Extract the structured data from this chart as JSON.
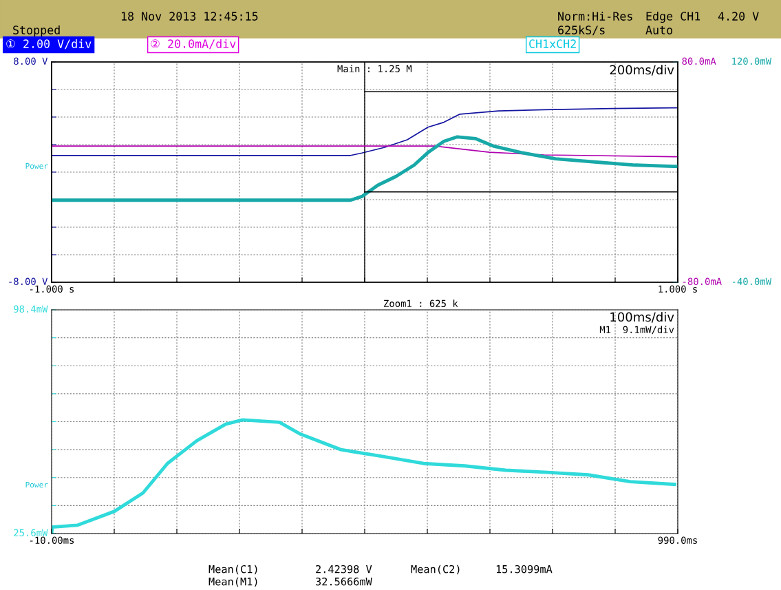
{
  "chart_data": [
    {
      "type": "line",
      "grid": true,
      "xlim": [
        -1,
        1
      ],
      "xticks": [
        {
          "value": -1,
          "label": "-1.000 s"
        },
        {
          "value": -0.8,
          "label": null
        },
        {
          "value": -0.6,
          "label": null
        },
        {
          "value": -0.4,
          "label": null
        },
        {
          "value": -0.2,
          "label": null
        },
        {
          "value": 0,
          "label": null
        },
        {
          "value": 0.2,
          "label": null
        },
        {
          "value": 0.4,
          "label": null
        },
        {
          "value": 0.6,
          "label": null
        },
        {
          "value": 0.8,
          "label": null
        },
        {
          "value": 1,
          "label": "1.000 s"
        }
      ],
      "ylim": [
        -8,
        8
      ],
      "yticks": [
        {
          "value": 8,
          "label": "8.00 V"
        },
        {
          "value": 6,
          "label": null
        },
        {
          "value": 4,
          "label": null
        },
        {
          "value": 2,
          "label": null
        },
        {
          "value": 0,
          "label": null
        },
        {
          "value": -2,
          "label": null
        },
        {
          "value": -4,
          "label": null
        },
        {
          "value": -6,
          "label": null
        },
        {
          "value": -8,
          "label": "-8.00 V"
        }
      ],
      "y2lim": [
        -80,
        80
      ],
      "y2ticks": [
        {
          "value": 80,
          "label": "80.0mA"
        },
        {
          "value": -80,
          "label": "-80.0mA"
        }
      ],
      "y3lim": [
        -40,
        120
      ],
      "y3ticks": [
        {
          "value": 120,
          "label": "120.0mW"
        },
        {
          "value": -40,
          "label": "-40.0mW"
        }
      ],
      "series": [
        {
          "axis": "y",
          "color": "#1414a0",
          "x": [
            -1,
            -0.045,
            -0.009,
            0.064,
            0.136,
            0.202,
            0.253,
            0.304,
            0.427,
            0.573,
            0.791,
            0.985,
            1
          ],
          "values": [
            1.21,
            1.21,
            1.39,
            1.8,
            2.35,
            3.26,
            3.62,
            4.21,
            4.44,
            4.53,
            4.62,
            4.67,
            4.67
          ]
        },
        {
          "axis": "y2",
          "color": "#b000b0",
          "x": [
            -1,
            0.224,
            0.296,
            0.398,
            0.573,
            0.985,
            1
          ],
          "values": [
            18.9,
            18.9,
            17.1,
            14.4,
            12.5,
            11.2,
            11.2
          ]
        },
        {
          "axis": "y3",
          "color": "#18a8a8",
          "x": [
            -1,
            -0.045,
            -0.009,
            0.042,
            0.1,
            0.158,
            0.202,
            0.253,
            0.296,
            0.355,
            0.413,
            0.5,
            0.609,
            0.755,
            0.864,
            0.985,
            1
          ],
          "values": [
            19.6,
            19.6,
            22.3,
            30.5,
            36.9,
            45.1,
            54.2,
            62.4,
            65.6,
            64.3,
            58.8,
            54.2,
            49.7,
            47.0,
            45.1,
            44.2,
            44.2
          ]
        }
      ],
      "ref_lines": [
        {
          "axis": "x",
          "value": 0,
          "color": "#000000"
        },
        {
          "axis": "y3",
          "value": 98.4,
          "color": "#000000"
        },
        {
          "axis": "y3",
          "value": 25.6,
          "color": "#000000"
        }
      ],
      "annotations": [
        "18 Nov 2013 12:45:15",
        "Stopped",
        "Norm:Hi-Res",
        "625kS/s",
        "Edge CH1",
        "4.20 V",
        "Auto",
        "① 2.00 V/div",
        "② 20.0mA/div",
        "CH1xCH2",
        "Main : 1.25 M",
        "200ms/div",
        "Power"
      ]
    },
    {
      "type": "line",
      "grid": true,
      "xlim": [
        -10,
        990
      ],
      "xticks": [
        {
          "value": -10,
          "label": "-10.00ms"
        },
        {
          "value": 90,
          "label": null
        },
        {
          "value": 190,
          "label": null
        },
        {
          "value": 290,
          "label": null
        },
        {
          "value": 390,
          "label": null
        },
        {
          "value": 490,
          "label": null
        },
        {
          "value": 590,
          "label": null
        },
        {
          "value": 690,
          "label": null
        },
        {
          "value": 790,
          "label": null
        },
        {
          "value": 890,
          "label": null
        },
        {
          "value": 990,
          "label": "990.0ms"
        }
      ],
      "ylim": [
        25.6,
        98.4
      ],
      "yticks": [
        {
          "value": 25.6,
          "label": "25.6mW"
        },
        {
          "value": 34.7,
          "label": null
        },
        {
          "value": 43.8,
          "label": null
        },
        {
          "value": 52.9,
          "label": null
        },
        {
          "value": 62.0,
          "label": null
        },
        {
          "value": 71.1,
          "label": null
        },
        {
          "value": 80.2,
          "label": null
        },
        {
          "value": 89.3,
          "label": null
        },
        {
          "value": 98.4,
          "label": "98.4mW"
        }
      ],
      "series": [
        {
          "axis": "y",
          "color": "#30dada",
          "x": [
            -10,
            -9,
            31,
            90,
            136,
            175,
            222,
            268,
            295,
            354,
            386,
            452,
            518,
            584,
            650,
            715,
            782,
            847,
            914,
            985
          ],
          "values": [
            25.6,
            27.7,
            28.3,
            32.8,
            38.8,
            48.4,
            55.8,
            61.2,
            62.6,
            61.8,
            58.1,
            52.9,
            50.7,
            48.4,
            47.6,
            46.2,
            45.5,
            44.7,
            42.5,
            41.6
          ]
        }
      ],
      "annotations": [
        "Zoom1 : 625 k",
        "100ms/div",
        "M1  9.1mW/div",
        "Power",
        "Mean(C1)",
        "2.42398 V",
        "Mean(C2)",
        "15.3099mA",
        "Mean(M1)",
        "32.5666mW"
      ]
    }
  ]
}
